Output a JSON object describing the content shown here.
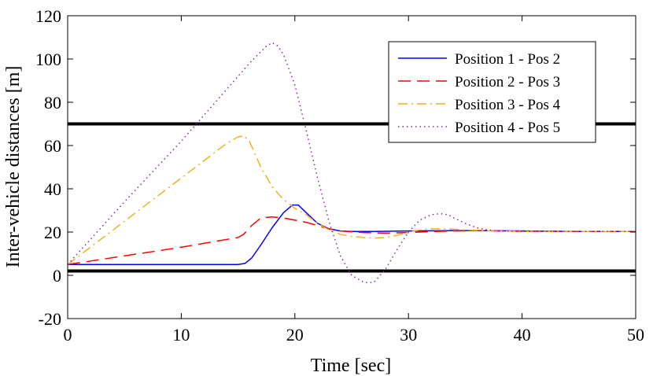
{
  "chart_data": {
    "type": "line",
    "title": "",
    "xlabel": "Time [sec]",
    "ylabel": "Inter-vehicle distances [m]",
    "xlim": [
      0,
      50
    ],
    "ylim": [
      -20,
      120
    ],
    "xticks": [
      0,
      10,
      20,
      30,
      40,
      50
    ],
    "yticks": [
      -20,
      0,
      20,
      40,
      60,
      80,
      100,
      120
    ],
    "xtick_labels": [
      "0",
      "10",
      "20",
      "30",
      "40",
      "50"
    ],
    "ytick_labels": [
      "-20",
      "0",
      "20",
      "40",
      "60",
      "80",
      "100",
      "120"
    ],
    "grid": false,
    "legend_position": "top-right",
    "reference_lines": [
      {
        "y": 70,
        "color": "#000000"
      },
      {
        "y": 2,
        "color": "#000000"
      }
    ],
    "series": [
      {
        "name": "Position 1 - Pos 2",
        "color": "#0000ff",
        "style": "solid",
        "x": [
          0,
          5,
          10,
          15,
          15.6,
          16.2,
          17,
          18,
          19,
          19.8,
          20.3,
          21,
          22,
          23,
          24,
          25,
          27,
          30,
          35,
          40,
          45,
          50
        ],
        "y": [
          5,
          5,
          5,
          5,
          5.5,
          8,
          14,
          22,
          29,
          32.5,
          32.5,
          29,
          24,
          21.5,
          20.5,
          20.3,
          20.3,
          20.5,
          20.7,
          20.5,
          20.3,
          20.3
        ]
      },
      {
        "name": "Position 2 - Pos 3",
        "color": "#ff0000",
        "style": "dashed",
        "x": [
          0,
          5,
          10,
          15,
          15.5,
          16.2,
          17,
          18,
          19,
          20,
          21,
          22,
          23,
          24,
          26,
          28,
          30,
          32,
          34,
          36,
          40,
          45,
          50
        ],
        "y": [
          5,
          9,
          13,
          17.5,
          19,
          23,
          26.5,
          27,
          26.5,
          25.5,
          24.5,
          23,
          21.5,
          20.5,
          19.8,
          19.5,
          19.8,
          20.2,
          20.5,
          20.6,
          20.4,
          20.3,
          20.3
        ]
      },
      {
        "name": "Position 3 - Pos 4",
        "color": "#edb120",
        "style": "dashdot",
        "x": [
          0,
          5,
          10,
          14,
          15,
          15.5,
          16,
          16.5,
          17,
          18,
          19,
          20,
          21,
          22,
          23,
          24,
          25,
          26,
          27,
          28,
          29,
          30,
          31,
          32,
          33,
          34,
          35,
          37,
          40,
          45,
          50
        ],
        "y": [
          5,
          25,
          45,
          61,
          64,
          64.5,
          62,
          56,
          50,
          41,
          35,
          31,
          28,
          24,
          21,
          19,
          18,
          17.5,
          17.2,
          17.5,
          18.5,
          20,
          21,
          21.5,
          21.5,
          21.3,
          21,
          20.6,
          20.3,
          20.3,
          20.3
        ]
      },
      {
        "name": "Position 4 - Pos 5",
        "color": "#7e2f8e",
        "style": "dotted",
        "x": [
          0,
          5,
          10,
          14,
          16,
          17.5,
          18,
          18.5,
          19,
          20,
          21,
          22,
          23,
          24,
          25,
          26,
          26.5,
          27,
          28,
          29,
          30,
          31,
          32,
          32.8,
          33.5,
          34,
          35,
          36,
          37,
          38,
          40,
          45,
          50
        ],
        "y": [
          5,
          34,
          62,
          86,
          98,
          106,
          107.5,
          106,
          102,
          88,
          67,
          45,
          25,
          9,
          0,
          -3,
          -3.5,
          -3,
          3,
          12,
          20,
          25.5,
          28,
          28.5,
          28,
          26.5,
          24,
          22,
          21,
          20.5,
          20.3,
          20.3,
          20.3
        ]
      }
    ]
  }
}
